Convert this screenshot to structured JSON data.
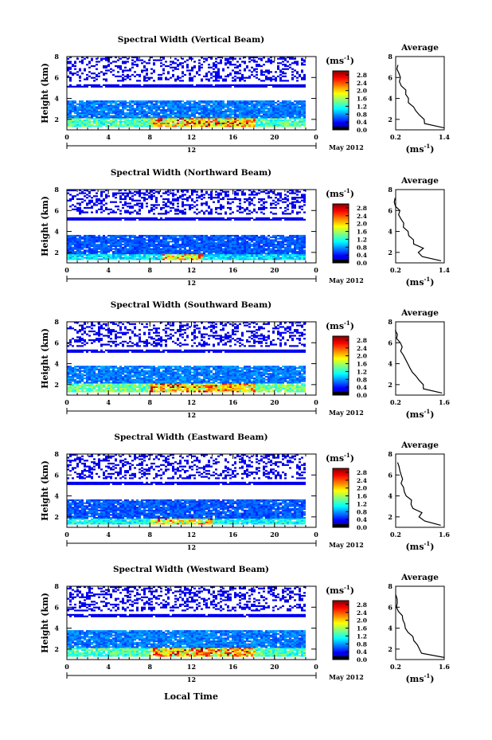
{
  "figure": {
    "x_axis_label": "Local Time",
    "date_label": "May 2012",
    "colorbar_unit_base": "(ms",
    "colorbar_unit_exp": "-1",
    "colorbar_unit_close": ")",
    "avg_title": "Average",
    "avg_unit_base": "(ms",
    "avg_unit_exp": "-1",
    "avg_unit_close": ")",
    "y_axis_label": "Height (km)"
  },
  "chart_data": [
    {
      "type": "heatmap",
      "title": "Spectral Width (Vertical Beam)",
      "xlabel": "",
      "ylabel": "Height (km)",
      "xlim": [
        0,
        24
      ],
      "ylim": [
        1,
        8
      ],
      "x_ticks": [
        "0",
        "4",
        "8",
        "12",
        "16",
        "20",
        "0"
      ],
      "x_sub_label": "12",
      "y_ticks": [
        "2",
        "4",
        "6",
        "8"
      ],
      "colorbar": {
        "ticks": [
          "0.0",
          "0.4",
          "0.8",
          "1.2",
          "1.6",
          "2.0",
          "2.4",
          "2.8"
        ],
        "range": [
          0,
          3.0
        ]
      },
      "data_extent_hours": [
        0,
        23
      ],
      "bands": [
        {
          "km": [
            1.2,
            3.8
          ],
          "level": 0.7
        },
        {
          "km": [
            1.2,
            2.0
          ],
          "level": 1.3
        },
        {
          "km": [
            5.0,
            5.3
          ],
          "level": 0.3
        },
        {
          "km": [
            5.6,
            8.0
          ],
          "level": 0.3,
          "sparse": true
        }
      ],
      "hot_spot": {
        "hours": [
          8,
          18
        ],
        "km": [
          1.2,
          2.0
        ],
        "level": 2.6
      },
      "average_profile": {
        "xlim": [
          0.2,
          1.4
        ],
        "x_ticks": [
          "0.2",
          "1.4"
        ],
        "ylim": [
          1,
          8
        ],
        "y_ticks": [
          "2",
          "4",
          "6",
          "8"
        ],
        "height": [
          1.2,
          1.6,
          2.0,
          2.4,
          2.8,
          3.2,
          3.6,
          4.0,
          4.4,
          4.8,
          5.2,
          5.6,
          6.0,
          6.4,
          6.8,
          7.2
        ],
        "width": [
          1.35,
          0.95,
          0.85,
          0.75,
          0.7,
          0.6,
          0.55,
          0.5,
          0.45,
          0.4,
          0.35,
          0.3,
          0.28,
          0.25,
          0.22,
          0.2
        ]
      }
    },
    {
      "type": "heatmap",
      "title": "Spectral Width (Northward Beam)",
      "xlabel": "",
      "ylabel": "Height (km)",
      "xlim": [
        0,
        24
      ],
      "ylim": [
        1,
        8
      ],
      "x_ticks": [
        "0",
        "4",
        "8",
        "12",
        "16",
        "20",
        "0"
      ],
      "x_sub_label": "12",
      "y_ticks": [
        "2",
        "4",
        "6",
        "8"
      ],
      "colorbar": {
        "ticks": [
          "0.0",
          "0.4",
          "0.8",
          "1.2",
          "1.6",
          "2.0",
          "2.4",
          "2.8"
        ],
        "range": [
          0,
          3.0
        ]
      },
      "data_extent_hours": [
        0,
        23
      ],
      "bands": [
        {
          "km": [
            1.2,
            3.6
          ],
          "level": 0.6
        },
        {
          "km": [
            1.2,
            1.8
          ],
          "level": 1.0
        },
        {
          "km": [
            5.0,
            5.3
          ],
          "level": 0.3
        },
        {
          "km": [
            5.6,
            8.0
          ],
          "level": 0.3,
          "sparse": true
        }
      ],
      "hot_spot": {
        "hours": [
          9,
          13
        ],
        "km": [
          1.2,
          1.8
        ],
        "level": 2.2
      },
      "average_profile": {
        "xlim": [
          0.2,
          1.4
        ],
        "x_ticks": [
          "0.2",
          "1.4"
        ],
        "ylim": [
          1,
          8
        ],
        "y_ticks": [
          "2",
          "4",
          "6",
          "8"
        ],
        "height": [
          1.2,
          1.6,
          2.0,
          2.4,
          2.8,
          3.2,
          3.6,
          4.0,
          4.4,
          4.8,
          5.2,
          5.6,
          6.0,
          6.4,
          6.8,
          7.2
        ],
        "width": [
          1.3,
          0.9,
          0.8,
          0.85,
          0.7,
          0.65,
          0.55,
          0.5,
          0.45,
          0.4,
          0.35,
          0.3,
          0.3,
          0.25,
          0.22,
          0.2
        ]
      }
    },
    {
      "type": "heatmap",
      "title": "Spectral Width (Southward Beam)",
      "xlabel": "",
      "ylabel": "Height (km)",
      "xlim": [
        0,
        24
      ],
      "ylim": [
        1,
        8
      ],
      "x_ticks": [
        "0",
        "4",
        "8",
        "12",
        "16",
        "20",
        "0"
      ],
      "x_sub_label": "12",
      "y_ticks": [
        "2",
        "4",
        "6",
        "8"
      ],
      "colorbar": {
        "ticks": [
          "0.0",
          "0.4",
          "0.8",
          "1.2",
          "1.6",
          "2.0",
          "2.4",
          "2.8"
        ],
        "range": [
          0,
          3.0
        ]
      },
      "data_extent_hours": [
        0,
        23
      ],
      "bands": [
        {
          "km": [
            1.2,
            3.8
          ],
          "level": 0.7
        },
        {
          "km": [
            1.2,
            2.0
          ],
          "level": 1.4
        },
        {
          "km": [
            5.0,
            5.3
          ],
          "level": 0.3
        },
        {
          "km": [
            5.6,
            8.0
          ],
          "level": 0.3,
          "sparse": true
        }
      ],
      "hot_spot": {
        "hours": [
          8,
          18
        ],
        "km": [
          1.2,
          2.0
        ],
        "level": 2.6
      },
      "average_profile": {
        "xlim": [
          0.2,
          1.6
        ],
        "x_ticks": [
          "0.2",
          "1.6"
        ],
        "ylim": [
          1,
          8
        ],
        "y_ticks": [
          "2",
          "4",
          "6",
          "8"
        ],
        "height": [
          1.2,
          1.6,
          2.0,
          2.4,
          2.8,
          3.2,
          3.6,
          4.0,
          4.4,
          4.8,
          5.2,
          5.6,
          6.0,
          6.4,
          6.8,
          7.2
        ],
        "width": [
          1.55,
          1.05,
          0.95,
          0.85,
          0.75,
          0.65,
          0.6,
          0.55,
          0.5,
          0.45,
          0.4,
          0.35,
          0.3,
          0.28,
          0.25,
          0.22
        ]
      }
    },
    {
      "type": "heatmap",
      "title": "Spectral Width (Eastward Beam)",
      "xlabel": "",
      "ylabel": "Height (km)",
      "xlim": [
        0,
        24
      ],
      "ylim": [
        1,
        8
      ],
      "x_ticks": [
        "0",
        "4",
        "8",
        "12",
        "16",
        "20",
        "0"
      ],
      "x_sub_label": "12",
      "y_ticks": [
        "2",
        "4",
        "6",
        "8"
      ],
      "colorbar": {
        "ticks": [
          "0.0",
          "0.4",
          "0.8",
          "1.2",
          "1.6",
          "2.0",
          "2.4",
          "2.8"
        ],
        "range": [
          0,
          3.0
        ]
      },
      "data_extent_hours": [
        0,
        23
      ],
      "bands": [
        {
          "km": [
            1.2,
            3.6
          ],
          "level": 0.6
        },
        {
          "km": [
            1.2,
            1.8
          ],
          "level": 1.1
        },
        {
          "km": [
            5.0,
            5.3
          ],
          "level": 0.3
        },
        {
          "km": [
            5.6,
            8.0
          ],
          "level": 0.3,
          "sparse": true
        }
      ],
      "hot_spot": {
        "hours": [
          8,
          14
        ],
        "km": [
          1.2,
          1.8
        ],
        "level": 2.4
      },
      "average_profile": {
        "xlim": [
          0.2,
          1.6
        ],
        "x_ticks": [
          "0.2",
          "1.6"
        ],
        "ylim": [
          1,
          8
        ],
        "y_ticks": [
          "2",
          "4",
          "6",
          "8"
        ],
        "height": [
          1.2,
          1.6,
          2.0,
          2.4,
          2.8,
          3.2,
          3.6,
          4.0,
          4.4,
          4.8,
          5.2,
          5.6,
          6.0,
          6.4,
          6.8,
          7.2
        ],
        "width": [
          1.5,
          1.0,
          0.9,
          0.95,
          0.75,
          0.7,
          0.6,
          0.55,
          0.5,
          0.45,
          0.4,
          0.35,
          0.3,
          0.3,
          0.25,
          0.22
        ]
      }
    },
    {
      "type": "heatmap",
      "title": "Spectral Width (Westward Beam)",
      "xlabel": "Local Time",
      "ylabel": "Height (km)",
      "xlim": [
        0,
        24
      ],
      "ylim": [
        1,
        8
      ],
      "x_ticks": [
        "0",
        "4",
        "8",
        "12",
        "16",
        "20",
        "0"
      ],
      "x_sub_label": "12",
      "y_ticks": [
        "2",
        "4",
        "6",
        "8"
      ],
      "colorbar": {
        "ticks": [
          "0.0",
          "0.4",
          "0.8",
          "1.2",
          "1.6",
          "2.0",
          "2.4",
          "2.8"
        ],
        "range": [
          0,
          3.0
        ]
      },
      "data_extent_hours": [
        0,
        23
      ],
      "bands": [
        {
          "km": [
            1.2,
            3.8
          ],
          "level": 0.7
        },
        {
          "km": [
            1.2,
            2.0
          ],
          "level": 1.3
        },
        {
          "km": [
            5.0,
            5.3
          ],
          "level": 0.3
        },
        {
          "km": [
            5.6,
            8.0
          ],
          "level": 0.3,
          "sparse": true
        }
      ],
      "hot_spot": {
        "hours": [
          8,
          18
        ],
        "km": [
          1.2,
          2.0
        ],
        "level": 2.6
      },
      "average_profile": {
        "xlim": [
          0.2,
          1.6
        ],
        "x_ticks": [
          "0.2",
          "1.6"
        ],
        "ylim": [
          1,
          8
        ],
        "y_ticks": [
          "2",
          "4",
          "6",
          "8"
        ],
        "height": [
          1.2,
          1.6,
          2.0,
          2.4,
          2.8,
          3.2,
          3.6,
          4.0,
          4.4,
          4.8,
          5.2,
          5.6,
          6.0,
          6.4,
          6.8,
          7.2
        ],
        "width": [
          1.55,
          1.0,
          0.9,
          0.8,
          0.7,
          0.65,
          0.55,
          0.5,
          0.45,
          0.4,
          0.35,
          0.3,
          0.28,
          0.25,
          0.22,
          0.2
        ]
      }
    }
  ]
}
